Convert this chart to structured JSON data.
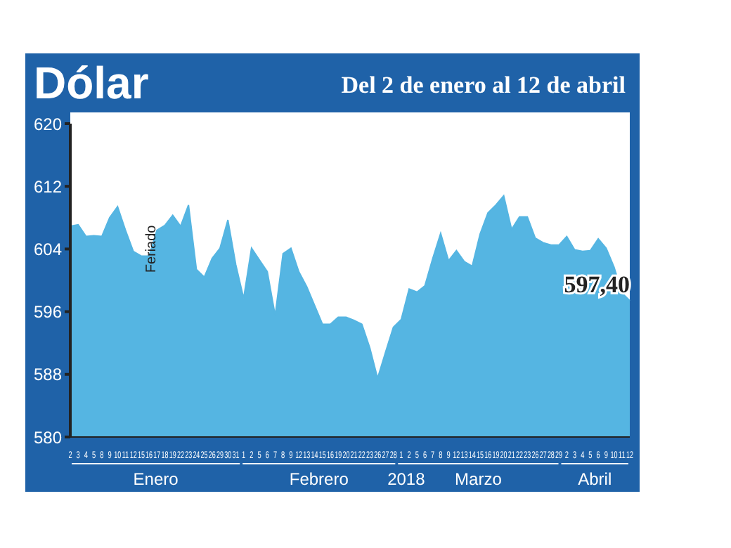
{
  "chart_data": {
    "type": "area",
    "title": "Dólar",
    "subtitle": "Del 2 de enero al 12 de abril",
    "xlabel": "2018",
    "categories": [
      "2",
      "3",
      "4",
      "5",
      "8",
      "9",
      "10",
      "11",
      "12",
      "15",
      "16",
      "17",
      "18",
      "19",
      "22",
      "23",
      "24",
      "25",
      "26",
      "29",
      "30",
      "31",
      "1",
      "2",
      "5",
      "6",
      "7",
      "8",
      "9",
      "12",
      "13",
      "14",
      "15",
      "16",
      "19",
      "20",
      "21",
      "22",
      "23",
      "26",
      "27",
      "28",
      "1",
      "2",
      "5",
      "6",
      "7",
      "8",
      "9",
      "12",
      "13",
      "14",
      "15",
      "16",
      "19",
      "20",
      "21",
      "22",
      "23",
      "26",
      "27",
      "28",
      "29",
      "2",
      "3",
      "4",
      "5",
      "6",
      "9",
      "10",
      "11",
      "12"
    ],
    "series": [
      {
        "color": "#55b5e2",
        "values": [
          606.9,
          607.1,
          605.6,
          605.7,
          605.6,
          608,
          609.4,
          606.4,
          603.7,
          603.1,
          603.1,
          606.4,
          607,
          608.3,
          606.9,
          609.6,
          601.4,
          600.4,
          602.8,
          604.1,
          607.7,
          602,
          597.7,
          604.1,
          602.6,
          601.1,
          595.5,
          603.4,
          604.1,
          601.1,
          599.2,
          596.8,
          594.4,
          594.4,
          595.3,
          595.3,
          594.9,
          594.4,
          591.4,
          587.5,
          590.8,
          594,
          595,
          598.9,
          598.5,
          599.3,
          602.8,
          606,
          602.5,
          603.8,
          602.4,
          601.8,
          605.9,
          608.6,
          609.6,
          610.8,
          606.5,
          608.1,
          608.1,
          605.4,
          604.8,
          604.5,
          604.5,
          605.6,
          603.9,
          603.7,
          603.8,
          605.3,
          604.1,
          601.7,
          598.4,
          597.4
        ],
        "value_labels": [
          null,
          null,
          null,
          null,
          null,
          null,
          null,
          null,
          null,
          null,
          null,
          null,
          null,
          null,
          null,
          null,
          null,
          null,
          null,
          null,
          null,
          null,
          null,
          null,
          null,
          null,
          null,
          null,
          null,
          null,
          null,
          null,
          null,
          null,
          null,
          null,
          null,
          null,
          null,
          null,
          null,
          null,
          null,
          null,
          null,
          null,
          null,
          null,
          null,
          null,
          null,
          null,
          null,
          null,
          null,
          null,
          null,
          null,
          null,
          null,
          null,
          null,
          null,
          null,
          null,
          null,
          null,
          null,
          null,
          null,
          null,
          "597,40"
        ]
      }
    ],
    "ylim": [
      580,
      620
    ],
    "yticks": [
      580,
      588,
      596,
      604,
      612,
      620
    ],
    "annotations": [
      {
        "text": "Feriado",
        "x": "16",
        "y": 604
      },
      "Enero",
      "Febrero",
      "Marzo",
      "Abril"
    ]
  }
}
